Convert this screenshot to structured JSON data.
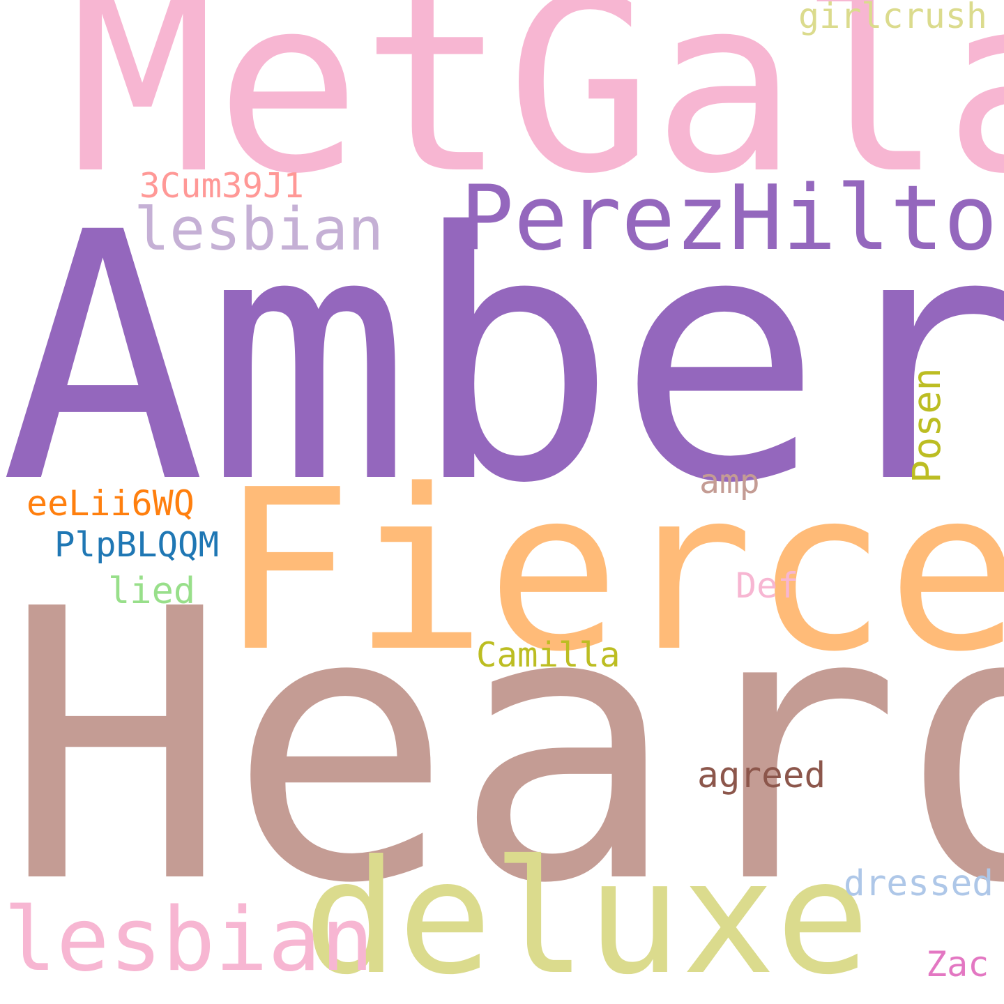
{
  "words": [
    {
      "key": "metgala",
      "text": "MetGala",
      "color": "#f7b6d2"
    },
    {
      "key": "amber",
      "text": "Amber",
      "color": "#9467bd"
    },
    {
      "key": "heard",
      "text": "Heard",
      "color": "#c49c94"
    },
    {
      "key": "fierce",
      "text": "Fierce",
      "color": "#ffbb78"
    },
    {
      "key": "perezhilton",
      "text": "PerezHilton",
      "color": "#9467bd"
    },
    {
      "key": "deluxe",
      "text": "deluxe",
      "color": "#dbdb8d"
    },
    {
      "key": "lesbian_lg",
      "text": "lesbian",
      "color": "#f7b6d2"
    },
    {
      "key": "lesbian_sm",
      "text": "lesbian",
      "color": "#c5b0d5"
    },
    {
      "key": "girlcrush",
      "text": "girlcrush",
      "color": "#dbdb8d"
    },
    {
      "key": "code_3cum",
      "text": "3Cum39J1",
      "color": "#ff9896"
    },
    {
      "key": "posen",
      "text": "Posen",
      "color": "#bcbd22"
    },
    {
      "key": "amp",
      "text": "amp",
      "color": "#c49c94"
    },
    {
      "key": "code_eelii",
      "text": "eeLii6WQ",
      "color": "#ff7f0e"
    },
    {
      "key": "code_plpb",
      "text": "PlpBLQQM",
      "color": "#1f77b4"
    },
    {
      "key": "lied",
      "text": "lied",
      "color": "#98df8a"
    },
    {
      "key": "def",
      "text": "Def",
      "color": "#f7b6d2"
    },
    {
      "key": "camilla",
      "text": "Camilla",
      "color": "#bcbd22"
    },
    {
      "key": "agreed",
      "text": "agreed",
      "color": "#8c564b"
    },
    {
      "key": "dressed",
      "text": "dressed",
      "color": "#aec7e8"
    },
    {
      "key": "zac",
      "text": "Zac",
      "color": "#e377c2"
    }
  ]
}
